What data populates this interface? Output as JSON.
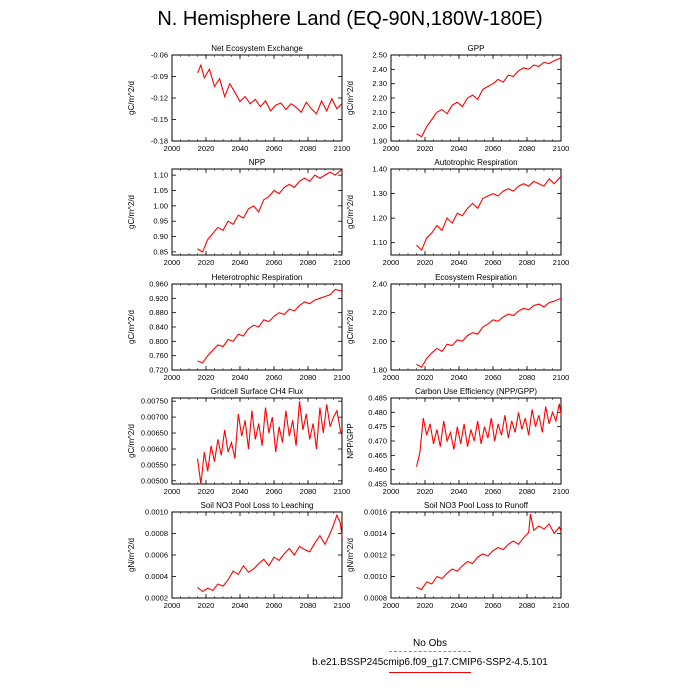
{
  "title": "N. Hemisphere Land (EQ-90N,180W-180E)",
  "legend": {
    "obs_label": "No Obs",
    "model_label": "b.e21.BSSP245cmip6.f09_g17.CMIP6-SSP2-4.5.101",
    "obs_color": "#8080ff",
    "model_color": "#ff0000"
  },
  "chart_data": [
    {
      "type": "line",
      "title": "Net Ecosystem Exchange",
      "ylabel": "gC/m^2/d",
      "xlim": [
        2000,
        2100
      ],
      "ylim": [
        -0.18,
        -0.06
      ],
      "xticks": [
        "2000",
        "2020",
        "2040",
        "2060",
        "2080",
        "2100"
      ],
      "yticks": [
        "-0.06",
        "-0.09",
        "-0.12",
        "-0.15",
        "-0.18"
      ],
      "ytick_values": [
        -0.06,
        -0.09,
        -0.12,
        -0.15,
        -0.18
      ],
      "series": [
        {
          "name": "b.e21.BSSP245cmip6.f09_g17.CMIP6-SSP2-4.5.101",
          "color": "#ff0000",
          "x": [
            2015,
            2017,
            2019,
            2022,
            2025,
            2028,
            2031,
            2034,
            2037,
            2040,
            2043,
            2046,
            2049,
            2052,
            2055,
            2058,
            2061,
            2064,
            2067,
            2070,
            2073,
            2076,
            2079,
            2082,
            2085,
            2088,
            2091,
            2094,
            2097,
            2100
          ],
          "y": [
            -0.085,
            -0.074,
            -0.092,
            -0.08,
            -0.104,
            -0.093,
            -0.118,
            -0.1,
            -0.112,
            -0.125,
            -0.118,
            -0.128,
            -0.122,
            -0.132,
            -0.124,
            -0.138,
            -0.13,
            -0.127,
            -0.136,
            -0.128,
            -0.133,
            -0.14,
            -0.126,
            -0.135,
            -0.142,
            -0.124,
            -0.138,
            -0.121,
            -0.135,
            -0.128
          ]
        }
      ]
    },
    {
      "type": "line",
      "title": "GPP",
      "ylabel": "gC/m^2/d",
      "xlim": [
        2000,
        2100
      ],
      "ylim": [
        1.9,
        2.5
      ],
      "xticks": [
        "2000",
        "2020",
        "2040",
        "2060",
        "2080",
        "2100"
      ],
      "yticks": [
        "2.50",
        "2.40",
        "2.30",
        "2.20",
        "2.10",
        "2.00",
        "1.90"
      ],
      "ytick_values": [
        2.5,
        2.4,
        2.3,
        2.2,
        2.1,
        2.0,
        1.9
      ],
      "series": [
        {
          "name": "b.e21.BSSP245cmip6.f09_g17.CMIP6-SSP2-4.5.101",
          "color": "#ff0000",
          "x": [
            2015,
            2018,
            2021,
            2024,
            2027,
            2030,
            2033,
            2036,
            2039,
            2042,
            2045,
            2048,
            2051,
            2054,
            2057,
            2060,
            2063,
            2066,
            2069,
            2072,
            2075,
            2078,
            2081,
            2084,
            2087,
            2090,
            2093,
            2096,
            2100
          ],
          "y": [
            1.95,
            1.93,
            2.0,
            2.05,
            2.1,
            2.12,
            2.09,
            2.15,
            2.17,
            2.14,
            2.2,
            2.22,
            2.19,
            2.26,
            2.28,
            2.3,
            2.33,
            2.31,
            2.36,
            2.35,
            2.39,
            2.41,
            2.4,
            2.43,
            2.42,
            2.45,
            2.44,
            2.46,
            2.48
          ]
        }
      ]
    },
    {
      "type": "line",
      "title": "NPP",
      "ylabel": "gC/m^2/d",
      "xlim": [
        2000,
        2100
      ],
      "ylim": [
        0.84,
        1.12
      ],
      "xticks": [
        "2000",
        "2020",
        "2040",
        "2060",
        "2080",
        "2100"
      ],
      "yticks": [
        "1.10",
        "1.05",
        "1.00",
        "0.95",
        "0.90",
        "0.85"
      ],
      "ytick_values": [
        1.1,
        1.05,
        1.0,
        0.95,
        0.9,
        0.85
      ],
      "series": [
        {
          "name": "b.e21.BSSP245cmip6.f09_g17.CMIP6-SSP2-4.5.101",
          "color": "#ff0000",
          "x": [
            2015,
            2018,
            2021,
            2024,
            2027,
            2030,
            2033,
            2036,
            2039,
            2042,
            2045,
            2048,
            2051,
            2054,
            2057,
            2060,
            2063,
            2066,
            2069,
            2072,
            2075,
            2078,
            2081,
            2084,
            2087,
            2090,
            2093,
            2096,
            2100
          ],
          "y": [
            0.86,
            0.85,
            0.89,
            0.91,
            0.93,
            0.92,
            0.95,
            0.94,
            0.97,
            0.96,
            0.99,
            1.0,
            0.98,
            1.02,
            1.03,
            1.05,
            1.04,
            1.06,
            1.07,
            1.06,
            1.08,
            1.09,
            1.08,
            1.1,
            1.09,
            1.1,
            1.11,
            1.1,
            1.12
          ]
        }
      ]
    },
    {
      "type": "line",
      "title": "Autotrophic Respiration",
      "ylabel": "gC/m^2/d",
      "xlim": [
        2000,
        2100
      ],
      "ylim": [
        1.05,
        1.4
      ],
      "xticks": [
        "2000",
        "2020",
        "2040",
        "2060",
        "2080",
        "2100"
      ],
      "yticks": [
        "1.40",
        "1.30",
        "1.20",
        "1.10"
      ],
      "ytick_values": [
        1.4,
        1.3,
        1.2,
        1.1
      ],
      "series": [
        {
          "name": "b.e21.BSSP245cmip6.f09_g17.CMIP6-SSP2-4.5.101",
          "color": "#ff0000",
          "x": [
            2015,
            2018,
            2021,
            2024,
            2027,
            2030,
            2033,
            2036,
            2039,
            2042,
            2045,
            2048,
            2051,
            2054,
            2057,
            2060,
            2063,
            2066,
            2069,
            2072,
            2075,
            2078,
            2081,
            2084,
            2087,
            2090,
            2093,
            2096,
            2100
          ],
          "y": [
            1.09,
            1.07,
            1.12,
            1.14,
            1.17,
            1.15,
            1.2,
            1.18,
            1.22,
            1.21,
            1.24,
            1.26,
            1.24,
            1.28,
            1.29,
            1.3,
            1.29,
            1.31,
            1.32,
            1.31,
            1.33,
            1.34,
            1.33,
            1.35,
            1.34,
            1.33,
            1.36,
            1.34,
            1.37
          ]
        }
      ]
    },
    {
      "type": "line",
      "title": "Heterotrophic Respiration",
      "ylabel": "gC/m^2/d",
      "xlim": [
        2000,
        2100
      ],
      "ylim": [
        0.72,
        0.96
      ],
      "xticks": [
        "2000",
        "2020",
        "2040",
        "2060",
        "2080",
        "2100"
      ],
      "yticks": [
        "0.960",
        "0.920",
        "0.880",
        "0.840",
        "0.800",
        "0.760",
        "0.720"
      ],
      "ytick_values": [
        0.96,
        0.92,
        0.88,
        0.84,
        0.8,
        0.76,
        0.72
      ],
      "series": [
        {
          "name": "b.e21.BSSP245cmip6.f09_g17.CMIP6-SSP2-4.5.101",
          "color": "#ff0000",
          "x": [
            2015,
            2018,
            2021,
            2024,
            2027,
            2030,
            2033,
            2036,
            2039,
            2042,
            2045,
            2048,
            2051,
            2054,
            2057,
            2060,
            2063,
            2066,
            2069,
            2072,
            2075,
            2078,
            2081,
            2084,
            2087,
            2090,
            2093,
            2096,
            2100
          ],
          "y": [
            0.745,
            0.74,
            0.76,
            0.775,
            0.79,
            0.785,
            0.805,
            0.8,
            0.82,
            0.815,
            0.835,
            0.845,
            0.84,
            0.86,
            0.855,
            0.87,
            0.88,
            0.875,
            0.89,
            0.885,
            0.9,
            0.91,
            0.905,
            0.915,
            0.92,
            0.925,
            0.93,
            0.945,
            0.94
          ]
        }
      ]
    },
    {
      "type": "line",
      "title": "Ecosystem Respiration",
      "ylabel": "gC/m^2/d",
      "xlim": [
        2000,
        2100
      ],
      "ylim": [
        1.8,
        2.4
      ],
      "xticks": [
        "2000",
        "2020",
        "2040",
        "2060",
        "2080",
        "2100"
      ],
      "yticks": [
        "2.40",
        "2.20",
        "2.00",
        "1.80"
      ],
      "ytick_values": [
        2.4,
        2.2,
        2.0,
        1.8
      ],
      "series": [
        {
          "name": "b.e21.BSSP245cmip6.f09_g17.CMIP6-SSP2-4.5.101",
          "color": "#ff0000",
          "x": [
            2015,
            2018,
            2021,
            2024,
            2027,
            2030,
            2033,
            2036,
            2039,
            2042,
            2045,
            2048,
            2051,
            2054,
            2057,
            2060,
            2063,
            2066,
            2069,
            2072,
            2075,
            2078,
            2081,
            2084,
            2087,
            2090,
            2093,
            2096,
            2100
          ],
          "y": [
            1.84,
            1.82,
            1.88,
            1.92,
            1.95,
            1.93,
            1.98,
            1.97,
            2.01,
            2.0,
            2.04,
            2.06,
            2.05,
            2.1,
            2.12,
            2.15,
            2.14,
            2.17,
            2.19,
            2.18,
            2.21,
            2.23,
            2.22,
            2.25,
            2.26,
            2.24,
            2.27,
            2.28,
            2.3
          ]
        }
      ]
    },
    {
      "type": "line",
      "title": "Gridcell Surface CH4 Flux",
      "ylabel": "gC/m^2/d",
      "xlim": [
        2000,
        2100
      ],
      "ylim": [
        0.0049,
        0.0076
      ],
      "xticks": [
        "2000",
        "2020",
        "2040",
        "2060",
        "2080",
        "2100"
      ],
      "yticks": [
        "0.00750",
        "0.00700",
        "0.00650",
        "0.00600",
        "0.00550",
        "0.00500"
      ],
      "ytick_values": [
        0.0075,
        0.007,
        0.0065,
        0.006,
        0.0055,
        0.005
      ],
      "series": [
        {
          "name": "b.e21.BSSP245cmip6.f09_g17.CMIP6-SSP2-4.5.101",
          "color": "#ff0000",
          "x": [
            2015,
            2017,
            2019,
            2021,
            2023,
            2025,
            2027,
            2029,
            2031,
            2033,
            2035,
            2037,
            2039,
            2041,
            2043,
            2045,
            2047,
            2049,
            2051,
            2053,
            2055,
            2057,
            2059,
            2061,
            2063,
            2065,
            2067,
            2069,
            2071,
            2073,
            2075,
            2077,
            2079,
            2081,
            2083,
            2085,
            2087,
            2089,
            2091,
            2093,
            2095,
            2097,
            2099,
            2100
          ],
          "y": [
            0.0057,
            0.0049,
            0.0059,
            0.0053,
            0.0061,
            0.0056,
            0.0063,
            0.0058,
            0.0066,
            0.0059,
            0.0062,
            0.0057,
            0.0071,
            0.0064,
            0.0069,
            0.006,
            0.0072,
            0.0063,
            0.0068,
            0.0061,
            0.0073,
            0.0065,
            0.007,
            0.0059,
            0.0067,
            0.0062,
            0.0072,
            0.0064,
            0.0069,
            0.0061,
            0.0075,
            0.0066,
            0.0071,
            0.0063,
            0.0068,
            0.006,
            0.0073,
            0.0065,
            0.0074,
            0.0067,
            0.007,
            0.0072,
            0.0066,
            0.0064
          ]
        }
      ]
    },
    {
      "type": "line",
      "title": "Carbon Use Efficiency (NPP/GPP)",
      "ylabel": "NPP/GPP",
      "xlim": [
        2000,
        2100
      ],
      "ylim": [
        0.455,
        0.485
      ],
      "xticks": [
        "2000",
        "2020",
        "2040",
        "2060",
        "2080",
        "2100"
      ],
      "yticks": [
        "0.485",
        "0.480",
        "0.475",
        "0.470",
        "0.465",
        "0.460",
        "0.455"
      ],
      "ytick_values": [
        0.485,
        0.48,
        0.475,
        0.47,
        0.465,
        0.46,
        0.455
      ],
      "series": [
        {
          "name": "b.e21.BSSP245cmip6.f09_g17.CMIP6-SSP2-4.5.101",
          "color": "#ff0000",
          "x": [
            2015,
            2017,
            2019,
            2021,
            2023,
            2025,
            2027,
            2029,
            2031,
            2033,
            2035,
            2037,
            2039,
            2041,
            2043,
            2045,
            2047,
            2049,
            2051,
            2053,
            2055,
            2057,
            2059,
            2061,
            2063,
            2065,
            2067,
            2069,
            2071,
            2073,
            2075,
            2077,
            2079,
            2081,
            2083,
            2085,
            2087,
            2089,
            2091,
            2093,
            2095,
            2097,
            2099,
            2100
          ],
          "y": [
            0.461,
            0.466,
            0.478,
            0.472,
            0.476,
            0.469,
            0.474,
            0.468,
            0.477,
            0.47,
            0.473,
            0.467,
            0.475,
            0.469,
            0.476,
            0.468,
            0.474,
            0.47,
            0.477,
            0.469,
            0.475,
            0.471,
            0.478,
            0.47,
            0.476,
            0.472,
            0.479,
            0.471,
            0.477,
            0.473,
            0.48,
            0.474,
            0.478,
            0.472,
            0.481,
            0.475,
            0.479,
            0.473,
            0.482,
            0.476,
            0.48,
            0.477,
            0.483,
            0.479
          ]
        }
      ]
    },
    {
      "type": "line",
      "title": "Soil NO3 Pool Loss to Leaching",
      "ylabel": "gN/m^2/d",
      "xlim": [
        2000,
        2100
      ],
      "ylim": [
        0.0002,
        0.001
      ],
      "xticks": [
        "2000",
        "2020",
        "2040",
        "2060",
        "2080",
        "2100"
      ],
      "yticks": [
        "0.0010",
        "0.0008",
        "0.0006",
        "0.0004",
        "0.0002"
      ],
      "ytick_values": [
        0.001,
        0.0008,
        0.0006,
        0.0004,
        0.0002
      ],
      "series": [
        {
          "name": "b.e21.BSSP245cmip6.f09_g17.CMIP6-SSP2-4.5.101",
          "color": "#ff0000",
          "x": [
            2015,
            2018,
            2021,
            2024,
            2027,
            2030,
            2033,
            2036,
            2039,
            2042,
            2045,
            2048,
            2051,
            2054,
            2057,
            2060,
            2063,
            2066,
            2069,
            2072,
            2075,
            2078,
            2081,
            2084,
            2087,
            2090,
            2093,
            2095,
            2097,
            2099,
            2100
          ],
          "y": [
            0.0003,
            0.00026,
            0.00029,
            0.00027,
            0.00033,
            0.00031,
            0.00037,
            0.00045,
            0.00042,
            0.0005,
            0.00044,
            0.00047,
            0.00052,
            0.00056,
            0.0005,
            0.00058,
            0.00055,
            0.00061,
            0.00066,
            0.0006,
            0.00068,
            0.00065,
            0.00063,
            0.00071,
            0.00078,
            0.0007,
            0.0008,
            0.00088,
            0.00097,
            0.0009,
            0.00077
          ]
        }
      ]
    },
    {
      "type": "line",
      "title": "Soil NO3 Pool Loss to Runoff",
      "ylabel": "gN/m^2/d",
      "xlim": [
        2000,
        2100
      ],
      "ylim": [
        0.0008,
        0.0016
      ],
      "xticks": [
        "2000",
        "2020",
        "2040",
        "2060",
        "2080",
        "2100"
      ],
      "yticks": [
        "0.0016",
        "0.0014",
        "0.0012",
        "0.0010",
        "0.0008"
      ],
      "ytick_values": [
        0.0016,
        0.0014,
        0.0012,
        0.001,
        0.0008
      ],
      "series": [
        {
          "name": "b.e21.BSSP245cmip6.f09_g17.CMIP6-SSP2-4.5.101",
          "color": "#ff0000",
          "x": [
            2015,
            2018,
            2021,
            2024,
            2027,
            2030,
            2033,
            2036,
            2039,
            2042,
            2045,
            2048,
            2051,
            2054,
            2057,
            2060,
            2063,
            2066,
            2069,
            2072,
            2075,
            2078,
            2081,
            2082,
            2084,
            2087,
            2090,
            2093,
            2096,
            2099,
            2100
          ],
          "y": [
            0.0009,
            0.00088,
            0.00095,
            0.00093,
            0.001,
            0.00098,
            0.00103,
            0.00107,
            0.00105,
            0.0011,
            0.00114,
            0.00112,
            0.00118,
            0.00121,
            0.00119,
            0.00124,
            0.00127,
            0.00125,
            0.0013,
            0.00133,
            0.0013,
            0.00136,
            0.00141,
            0.00158,
            0.00143,
            0.00147,
            0.00144,
            0.00149,
            0.0014,
            0.00146,
            0.00142
          ]
        }
      ]
    }
  ]
}
